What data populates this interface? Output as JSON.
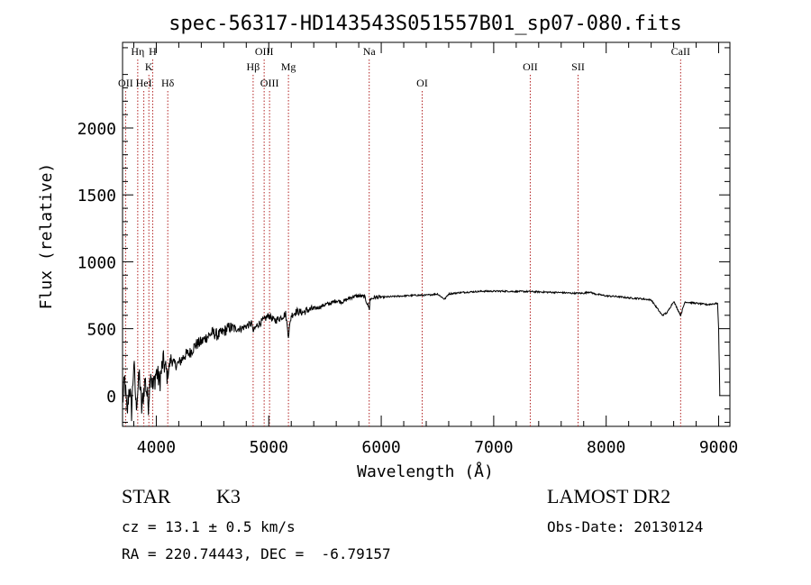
{
  "chart_data": {
    "type": "line",
    "title": "spec-56317-HD143543S051557B01_sp07-080.fits",
    "xlabel": "Wavelength (Å)",
    "ylabel": "Flux (relative)",
    "xlim": [
      3700,
      9100
    ],
    "ylim": [
      -230,
      2640
    ],
    "x_ticks": [
      4000,
      5000,
      6000,
      7000,
      8000,
      9000
    ],
    "y_ticks": [
      0,
      500,
      1000,
      1500,
      2000
    ],
    "grid": false,
    "line_color": "#000000",
    "series": [
      {
        "x": [
          3700,
          3720,
          3740,
          3760,
          3780,
          3800,
          3820,
          3850,
          3870,
          3900,
          3930,
          3950,
          3970,
          4000,
          4030,
          4060,
          4100,
          4130,
          4160,
          4200,
          4250,
          4300,
          4350,
          4400,
          4450,
          4500,
          4550,
          4600,
          4650,
          4700,
          4750,
          4800,
          4850,
          4862,
          4900,
          4950,
          5000,
          5050,
          5100,
          5150,
          5175,
          5200,
          5250,
          5300,
          5350,
          5400,
          5450,
          5500,
          5550,
          5600,
          5650,
          5700,
          5750,
          5800,
          5850,
          5890,
          5895,
          5900,
          5950,
          6000,
          6100,
          6200,
          6300,
          6400,
          6500,
          6563,
          6600,
          6700,
          6800,
          6900,
          7000,
          7100,
          7200,
          7300,
          7400,
          7500,
          7600,
          7700,
          7800,
          7850,
          7900,
          8000,
          8100,
          8200,
          8300,
          8400,
          8498,
          8542,
          8600,
          8662,
          8700,
          8800,
          8900,
          8990,
          9000,
          9010
        ],
        "y": [
          -50,
          120,
          -150,
          80,
          -120,
          250,
          -80,
          150,
          -100,
          120,
          -60,
          200,
          50,
          180,
          100,
          260,
          150,
          280,
          230,
          240,
          300,
          320,
          380,
          400,
          440,
          470,
          450,
          480,
          510,
          500,
          500,
          520,
          540,
          480,
          530,
          560,
          600,
          560,
          580,
          610,
          450,
          600,
          630,
          620,
          640,
          650,
          660,
          680,
          690,
          710,
          700,
          720,
          740,
          745,
          740,
          660,
          640,
          720,
          735,
          735,
          740,
          745,
          750,
          750,
          760,
          720,
          760,
          770,
          775,
          780,
          780,
          780,
          778,
          778,
          775,
          772,
          770,
          765,
          765,
          775,
          760,
          745,
          740,
          730,
          725,
          715,
          600,
          620,
          705,
          600,
          700,
          690,
          680,
          690,
          500,
          0
        ]
      }
    ],
    "spectral_lines": [
      {
        "label": "OII",
        "x": 3727,
        "row": 3
      },
      {
        "label": "Hη",
        "x": 3835,
        "row": 1
      },
      {
        "label": "HeI",
        "x": 3889,
        "row": 3
      },
      {
        "label": "K",
        "x": 3934,
        "row": 2
      },
      {
        "label": "H",
        "x": 3968,
        "row": 1
      },
      {
        "label": "Hδ",
        "x": 4102,
        "row": 3
      },
      {
        "label": "Hβ",
        "x": 4861,
        "row": 2
      },
      {
        "label": "OIII",
        "x": 4959,
        "row": 1
      },
      {
        "label": "OIII",
        "x": 5007,
        "row": 3
      },
      {
        "label": "Mg",
        "x": 5175,
        "row": 2
      },
      {
        "label": "Na",
        "x": 5893,
        "row": 1
      },
      {
        "label": "OI",
        "x": 6364,
        "row": 3
      },
      {
        "label": "OII",
        "x": 7325,
        "row": 2
      },
      {
        "label": "SII",
        "x": 7750,
        "row": 2
      },
      {
        "label": "CaII",
        "x": 8662,
        "row": 1
      }
    ],
    "line_marker_color": "#b22222"
  },
  "info": {
    "object_class": "STAR",
    "subclass": "K3",
    "survey": "LAMOST DR2",
    "redshift": "cz = 13.1 ± 0.5 km/s",
    "obs_date": "Obs-Date: 20130124",
    "coords": "RA = 220.74443, DEC =  -6.79157"
  }
}
